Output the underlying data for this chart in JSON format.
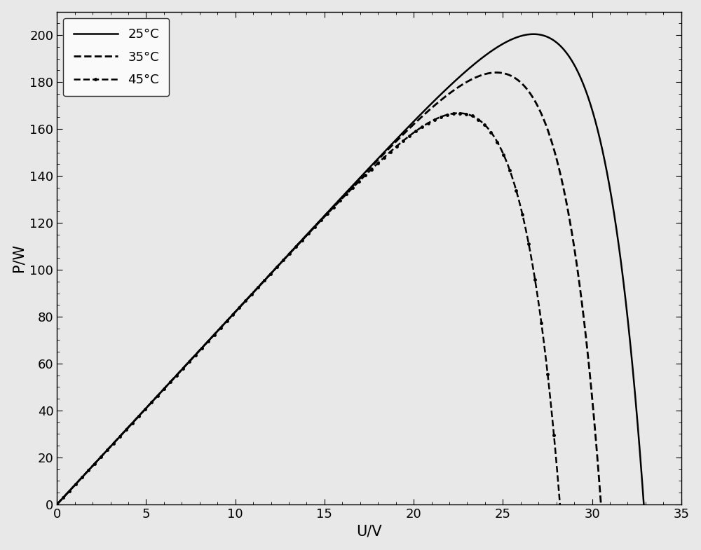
{
  "title": "",
  "xlabel": "U/V",
  "ylabel": "P/W",
  "xlim": [
    0,
    35
  ],
  "ylim": [
    0,
    210
  ],
  "xticks": [
    0,
    5,
    10,
    15,
    20,
    25,
    30,
    35
  ],
  "yticks": [
    0,
    20,
    40,
    60,
    80,
    100,
    120,
    140,
    160,
    180,
    200
  ],
  "curves": [
    {
      "label": "25°C",
      "linestyle": "solid",
      "marker": "none",
      "color": "#000000",
      "Isc": 8.21,
      "Voc": 32.9,
      "Imp": 7.61,
      "Vmp": 26.3,
      "a": 1.2
    },
    {
      "label": "35°C",
      "linestyle": "dashed",
      "marker": "none",
      "color": "#000000",
      "Isc": 8.21,
      "Voc": 30.5,
      "Imp": 7.42,
      "Vmp": 24.8,
      "a": 1.2
    },
    {
      "label": "45°C",
      "linestyle": "dashed",
      "marker": "dot",
      "color": "#000000",
      "Isc": 8.21,
      "Voc": 28.2,
      "Imp": 7.23,
      "Vmp": 23.0,
      "a": 1.2
    }
  ],
  "legend_loc": "upper left",
  "background_color": "#f0f0f0",
  "figsize": [
    10,
    7.85
  ],
  "dpi": 100
}
